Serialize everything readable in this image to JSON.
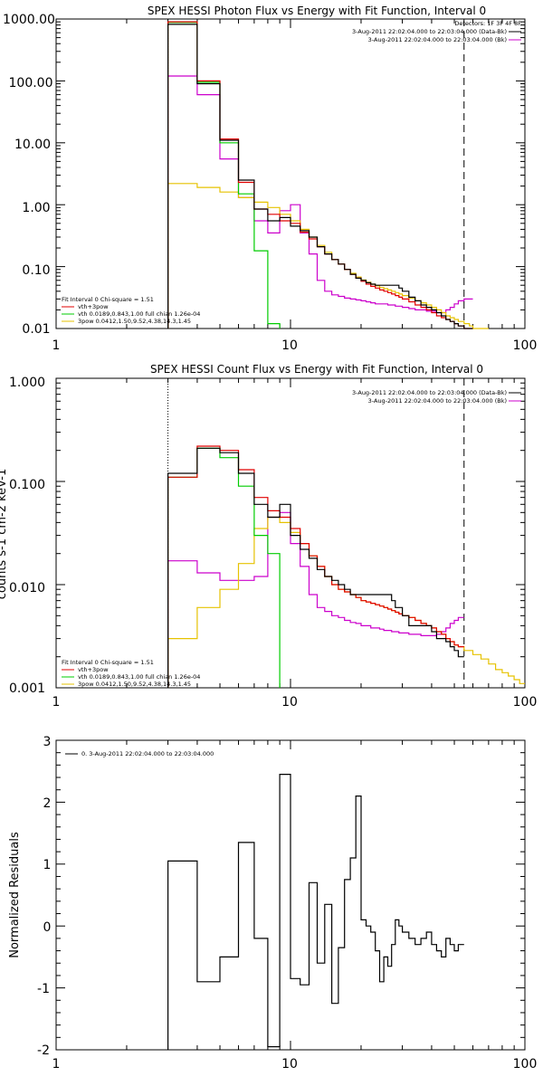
{
  "colors": {
    "data": "#000000",
    "total": "#e00000",
    "thermal": "#00cc00",
    "power": "#e6c200",
    "background": "#cc00cc"
  },
  "chart_data": [
    {
      "type": "line",
      "title": "SPEX HESSI Photon Flux vs Energy with Fit Function, Interval 0",
      "xscale": "log",
      "yscale": "log",
      "xlim": [
        1,
        100
      ],
      "ylim": [
        0.01,
        1000
      ],
      "xticks": [
        "1",
        "10",
        "100"
      ],
      "yticks": [
        "0.01",
        "0.10",
        "1.00",
        "10.00",
        "100.00",
        "1000.00"
      ],
      "legend_topright": [
        "Detectors: 1F 3F 4F 8F",
        "3-Aug-2011 22:02:04.000 to 22:03:04.000 (Data-Bk)",
        "3-Aug-2011 22:02:04.000 to 22:03:04.000 (Bk)"
      ],
      "legend_bottomleft": [
        "Fit Interval  0   Chi-square = 1.51",
        "vth+3pow",
        "vth 0.0189,0.843,1.00  full chian 1.26e-04",
        "3pow 0.0412,1.50,9.52,4.38,14.3,1.45"
      ],
      "vline_dotted": 3,
      "vline_dashed": 55,
      "series": [
        {
          "name": "3-Aug-2011 22:02:04.000 to 22:03:04.000 (Data-Bk)",
          "color_key": "data",
          "edges": [
            3,
            4,
            5,
            6,
            7,
            8,
            9,
            10,
            11,
            12,
            13,
            14,
            15,
            16,
            17,
            18,
            19,
            20,
            21,
            22,
            23,
            24,
            25,
            26,
            27,
            28,
            29,
            30,
            32,
            34,
            36,
            38,
            40,
            42,
            44,
            46,
            48,
            50,
            52,
            55,
            58,
            60
          ],
          "values": [
            820,
            90,
            11,
            2.5,
            0.85,
            0.55,
            0.62,
            0.45,
            0.38,
            0.3,
            0.21,
            0.16,
            0.13,
            0.11,
            0.09,
            0.075,
            0.065,
            0.06,
            0.055,
            0.052,
            0.05,
            0.05,
            0.05,
            0.05,
            0.05,
            0.05,
            0.045,
            0.04,
            0.032,
            0.028,
            0.024,
            0.022,
            0.02,
            0.018,
            0.016,
            0.014,
            0.013,
            0.012,
            0.011,
            0.01,
            0.009
          ]
        },
        {
          "name": "vth+3pow",
          "color_key": "total",
          "edges": [
            3,
            4,
            5,
            6,
            7,
            8,
            9,
            10,
            11,
            12,
            13,
            14,
            15,
            16,
            17,
            18,
            19,
            20,
            21,
            22,
            23,
            24,
            25,
            26,
            27,
            28,
            29,
            30,
            32,
            34,
            36,
            38,
            40,
            42,
            44,
            46,
            48,
            50,
            52,
            55,
            58,
            60
          ],
          "values": [
            900,
            100,
            11.5,
            2.3,
            0.85,
            0.7,
            0.55,
            0.5,
            0.36,
            0.28,
            0.21,
            0.16,
            0.13,
            0.11,
            0.09,
            0.075,
            0.065,
            0.058,
            0.052,
            0.048,
            0.045,
            0.042,
            0.04,
            0.038,
            0.036,
            0.034,
            0.032,
            0.03,
            0.027,
            0.024,
            0.022,
            0.02,
            0.018,
            0.016,
            0.015,
            0.014,
            0.013,
            0.012,
            0.011,
            0.01,
            0.009
          ]
        },
        {
          "name": "vth 0.0189,0.843,1.00  full chian 1.26e-04",
          "color_key": "thermal",
          "edges": [
            3,
            4,
            5,
            6,
            7,
            8,
            9
          ],
          "values": [
            880,
            95,
            10,
            1.5,
            0.18,
            0.012
          ]
        },
        {
          "name": "3pow 0.0412,1.50,9.52,4.38,14.3,1.45",
          "color_key": "power",
          "edges": [
            3,
            4,
            5,
            6,
            7,
            8,
            9,
            10,
            11,
            12,
            13,
            14,
            15,
            16,
            17,
            18,
            19,
            20,
            21,
            22,
            23,
            24,
            25,
            26,
            27,
            28,
            29,
            30,
            32,
            34,
            36,
            38,
            40,
            42,
            44,
            46,
            48,
            50,
            52,
            55,
            58,
            60,
            65,
            70
          ],
          "values": [
            2.2,
            1.9,
            1.6,
            1.3,
            1.1,
            0.9,
            0.7,
            0.55,
            0.4,
            0.3,
            0.22,
            0.17,
            0.13,
            0.11,
            0.09,
            0.078,
            0.068,
            0.061,
            0.056,
            0.052,
            0.049,
            0.046,
            0.044,
            0.042,
            0.04,
            0.038,
            0.036,
            0.034,
            0.031,
            0.028,
            0.026,
            0.024,
            0.022,
            0.02,
            0.018,
            0.016,
            0.015,
            0.014,
            0.013,
            0.012,
            0.011,
            0.01,
            0.009
          ]
        },
        {
          "name": "3-Aug-2011 22:02:04.000 to 22:03:04.000 (Bk)",
          "color_key": "background",
          "edges": [
            3,
            4,
            5,
            6,
            7,
            8,
            9,
            10,
            11,
            12,
            13,
            14,
            15,
            16,
            17,
            18,
            19,
            20,
            21,
            22,
            23,
            24,
            25,
            26,
            27,
            28,
            29,
            30,
            32,
            34,
            36,
            38,
            40,
            42,
            44,
            46,
            48,
            50,
            52,
            55,
            58,
            60
          ],
          "values": [
            120,
            60,
            5.5,
            1.3,
            0.55,
            0.35,
            0.8,
            1.0,
            0.35,
            0.16,
            0.06,
            0.04,
            0.035,
            0.033,
            0.031,
            0.03,
            0.029,
            0.028,
            0.027,
            0.026,
            0.025,
            0.025,
            0.025,
            0.024,
            0.024,
            0.023,
            0.023,
            0.022,
            0.021,
            0.02,
            0.02,
            0.019,
            0.019,
            0.018,
            0.018,
            0.02,
            0.022,
            0.025,
            0.028,
            0.03,
            0.03
          ]
        }
      ]
    },
    {
      "type": "line",
      "title": "SPEX HESSI Count Flux vs Energy with Fit Function, Interval 0",
      "xscale": "log",
      "yscale": "log",
      "xlim": [
        1,
        100
      ],
      "ylim": [
        0.001,
        1
      ],
      "xticks": [
        "1",
        "10",
        "100"
      ],
      "yticks": [
        "0.001",
        "0.010",
        "0.100",
        "1.000"
      ],
      "ylabel": "counts s-1 cm-2 keV-1",
      "legend_topright": [
        "3-Aug-2011 22:02:04.000 to 22:03:04.000 (Data-Bk)",
        "3-Aug-2011 22:02:04.000 to 22:03:04.000 (Bk)"
      ],
      "legend_bottomleft": [
        "Fit Interval  0   Chi-square = 1.51",
        "vth+3pow",
        "vth 0.0189,0.843,1.00  full chian 1.26e-04",
        "3pow 0.0412,1.50,9.52,4.38,14.3,1.45"
      ],
      "vline_dotted": 3,
      "vline_dashed": 55,
      "series": [
        {
          "name": "3-Aug-2011 22:02:04.000 to 22:03:04.000 (Data-Bk)",
          "color_key": "data",
          "edges": [
            3,
            4,
            5,
            6,
            7,
            8,
            9,
            10,
            11,
            12,
            13,
            14,
            15,
            16,
            17,
            18,
            19,
            20,
            21,
            22,
            23,
            24,
            25,
            26,
            27,
            28,
            29,
            30,
            32,
            34,
            36,
            38,
            40,
            42,
            44,
            46,
            48,
            50,
            52,
            55
          ],
          "values": [
            0.12,
            0.21,
            0.19,
            0.12,
            0.06,
            0.045,
            0.06,
            0.03,
            0.022,
            0.018,
            0.014,
            0.012,
            0.011,
            0.01,
            0.009,
            0.008,
            0.008,
            0.008,
            0.008,
            0.008,
            0.008,
            0.008,
            0.008,
            0.008,
            0.007,
            0.006,
            0.006,
            0.005,
            0.004,
            0.004,
            0.004,
            0.004,
            0.0035,
            0.003,
            0.003,
            0.0028,
            0.0025,
            0.0023,
            0.002
          ]
        },
        {
          "name": "vth+3pow",
          "color_key": "total",
          "edges": [
            3,
            4,
            5,
            6,
            7,
            8,
            9,
            10,
            11,
            12,
            13,
            14,
            15,
            16,
            17,
            18,
            19,
            20,
            21,
            22,
            23,
            24,
            25,
            26,
            27,
            28,
            29,
            30,
            32,
            34,
            36,
            38,
            40,
            42,
            44,
            46,
            48,
            50,
            52,
            55
          ],
          "values": [
            0.11,
            0.22,
            0.2,
            0.13,
            0.07,
            0.052,
            0.045,
            0.035,
            0.025,
            0.019,
            0.015,
            0.012,
            0.01,
            0.009,
            0.0085,
            0.008,
            0.0075,
            0.007,
            0.0068,
            0.0066,
            0.0064,
            0.0062,
            0.006,
            0.0058,
            0.0056,
            0.0054,
            0.0052,
            0.005,
            0.0048,
            0.0045,
            0.0042,
            0.004,
            0.0038,
            0.0035,
            0.0033,
            0.003,
            0.0028,
            0.0026,
            0.0025
          ]
        },
        {
          "name": "vth 0.0189,0.843,1.00  full chian 1.26e-04",
          "color_key": "thermal",
          "edges": [
            3,
            4,
            5,
            6,
            7,
            8,
            9
          ],
          "values": [
            0.11,
            0.21,
            0.17,
            0.09,
            0.03,
            0.02
          ]
        },
        {
          "name": "3pow 0.0412,1.50,9.52,4.38,14.3,1.45",
          "color_key": "power",
          "edges": [
            3,
            4,
            5,
            6,
            7,
            8,
            9,
            10,
            11,
            12,
            13,
            14,
            15,
            16,
            17,
            18,
            19,
            20,
            21,
            22,
            23,
            24,
            25,
            26,
            27,
            28,
            29,
            30,
            32,
            34,
            36,
            38,
            40,
            42,
            44,
            46,
            48,
            50,
            52,
            55,
            60,
            65,
            70,
            75,
            80,
            85,
            90,
            95,
            100
          ],
          "values": [
            0.003,
            0.006,
            0.009,
            0.016,
            0.035,
            0.045,
            0.04,
            0.032,
            0.025,
            0.019,
            0.015,
            0.012,
            0.01,
            0.009,
            0.0085,
            0.008,
            0.0075,
            0.007,
            0.0068,
            0.0066,
            0.0064,
            0.0062,
            0.006,
            0.0058,
            0.0056,
            0.0054,
            0.0052,
            0.005,
            0.0048,
            0.0045,
            0.0042,
            0.004,
            0.0038,
            0.0035,
            0.0033,
            0.003,
            0.0028,
            0.0026,
            0.0025,
            0.0023,
            0.0021,
            0.0019,
            0.0017,
            0.0015,
            0.0014,
            0.0013,
            0.0012,
            0.0011
          ]
        },
        {
          "name": "3-Aug-2011 22:02:04.000 to 22:03:04.000 (Bk)",
          "color_key": "background",
          "edges": [
            3,
            4,
            5,
            6,
            7,
            8,
            9,
            10,
            11,
            12,
            13,
            14,
            15,
            16,
            17,
            18,
            19,
            20,
            21,
            22,
            23,
            24,
            25,
            26,
            27,
            28,
            29,
            30,
            32,
            34,
            36,
            38,
            40,
            42,
            44,
            46,
            48,
            50,
            52,
            55
          ],
          "values": [
            0.017,
            0.013,
            0.011,
            0.011,
            0.012,
            0.045,
            0.05,
            0.025,
            0.015,
            0.008,
            0.006,
            0.0055,
            0.005,
            0.0048,
            0.0045,
            0.0043,
            0.0042,
            0.004,
            0.004,
            0.0038,
            0.0038,
            0.0037,
            0.0036,
            0.0036,
            0.0035,
            0.0035,
            0.0034,
            0.0034,
            0.0033,
            0.0033,
            0.0032,
            0.0032,
            0.0032,
            0.0033,
            0.0035,
            0.0038,
            0.0042,
            0.0045,
            0.0048,
            0.005
          ]
        }
      ]
    },
    {
      "type": "line",
      "title": "",
      "xscale": "log",
      "yscale": "linear",
      "xlim": [
        1,
        100
      ],
      "ylim": [
        -2,
        3
      ],
      "xticks": [
        "1",
        "10",
        "100"
      ],
      "yticks": [
        "-2",
        "-1",
        "0",
        "1",
        "2",
        "3"
      ],
      "ylabel": "Normalized Residuals",
      "legend_topleft": [
        "0.  3-Aug-2011 22:02:04.000 to 22:03:04.000"
      ],
      "series": [
        {
          "name": "0.  3-Aug-2011 22:02:04.000 to 22:03:04.000",
          "color_key": "data",
          "edges": [
            3,
            4,
            5,
            6,
            7,
            8,
            9,
            10,
            11,
            12,
            13,
            14,
            15,
            16,
            17,
            18,
            19,
            20,
            21,
            22,
            23,
            24,
            25,
            26,
            27,
            28,
            29,
            30,
            32,
            34,
            36,
            38,
            40,
            42,
            44,
            46,
            48,
            50,
            52,
            55
          ],
          "values": [
            1.05,
            -0.9,
            -0.5,
            1.35,
            -0.2,
            -1.95,
            2.45,
            -0.85,
            -0.95,
            0.7,
            -0.6,
            0.35,
            -1.25,
            -0.35,
            0.75,
            1.1,
            2.1,
            0.1,
            0.0,
            -0.1,
            -0.4,
            -0.9,
            -0.5,
            -0.65,
            -0.3,
            0.1,
            0.0,
            -0.1,
            -0.2,
            -0.3,
            -0.2,
            -0.1,
            -0.3,
            -0.4,
            -0.5,
            -0.2,
            -0.3,
            -0.4,
            -0.3
          ]
        }
      ]
    }
  ]
}
